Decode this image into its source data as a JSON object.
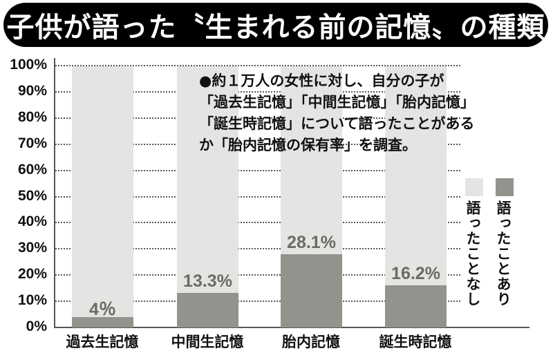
{
  "title": "子供が語った〝生まれる前の記憶〟の種類",
  "note": {
    "lines": [
      "●約１万人の女性に対し、自分の子が",
      "「過去生記憶」「中間生記憶」「胎内記憶」",
      "「誕生時記憶」について語ったことがある",
      "か「胎内記憶の保有率」を調査。"
    ]
  },
  "legend": {
    "no": {
      "label": "語ったことなし",
      "color": "#e4e4e2"
    },
    "yes": {
      "label": "語ったことあり",
      "color": "#93928c"
    }
  },
  "y_ticks": [
    "100%",
    "90%",
    "80%",
    "70%",
    "60%",
    "50%",
    "40%",
    "30%",
    "20%",
    "10%",
    "0%"
  ],
  "bars": [
    {
      "category": "過去生記憶",
      "value": 4,
      "label": "4％"
    },
    {
      "category": "中間生記憶",
      "value": 13.3,
      "label": "13.3%"
    },
    {
      "category": "胎内記憶",
      "value": 28.1,
      "label": "28.1%"
    },
    {
      "category": "誕生時記憶",
      "value": 16.2,
      "label": "16.2%"
    }
  ],
  "chart_data": {
    "type": "bar",
    "stacked": true,
    "title": "子供が語った〝生まれる前の記憶〟の種類",
    "categories": [
      "過去生記憶",
      "中間生記憶",
      "胎内記憶",
      "誕生時記憶"
    ],
    "series": [
      {
        "name": "語ったことあり",
        "color": "#93928c",
        "values": [
          4,
          13.3,
          28.1,
          16.2
        ]
      },
      {
        "name": "語ったことなし",
        "color": "#e4e4e2",
        "values": [
          96,
          86.7,
          71.9,
          83.8
        ]
      }
    ],
    "data_labels": [
      "4％",
      "13.3%",
      "28.1%",
      "16.2%"
    ],
    "xlabel": "",
    "ylabel": "",
    "ylim": [
      0,
      100
    ],
    "yticks": [
      0,
      10,
      20,
      30,
      40,
      50,
      60,
      70,
      80,
      90,
      100
    ],
    "ytick_format": "%",
    "grid": "horizontal dotted",
    "legend_position": "right, vertical text",
    "annotation": "●約１万人の女性に対し、自分の子が「過去生記憶」「中間生記憶」「胎内記憶」「誕生時記憶」について語ったことがあるか「胎内記憶の保有率」を調査。"
  }
}
